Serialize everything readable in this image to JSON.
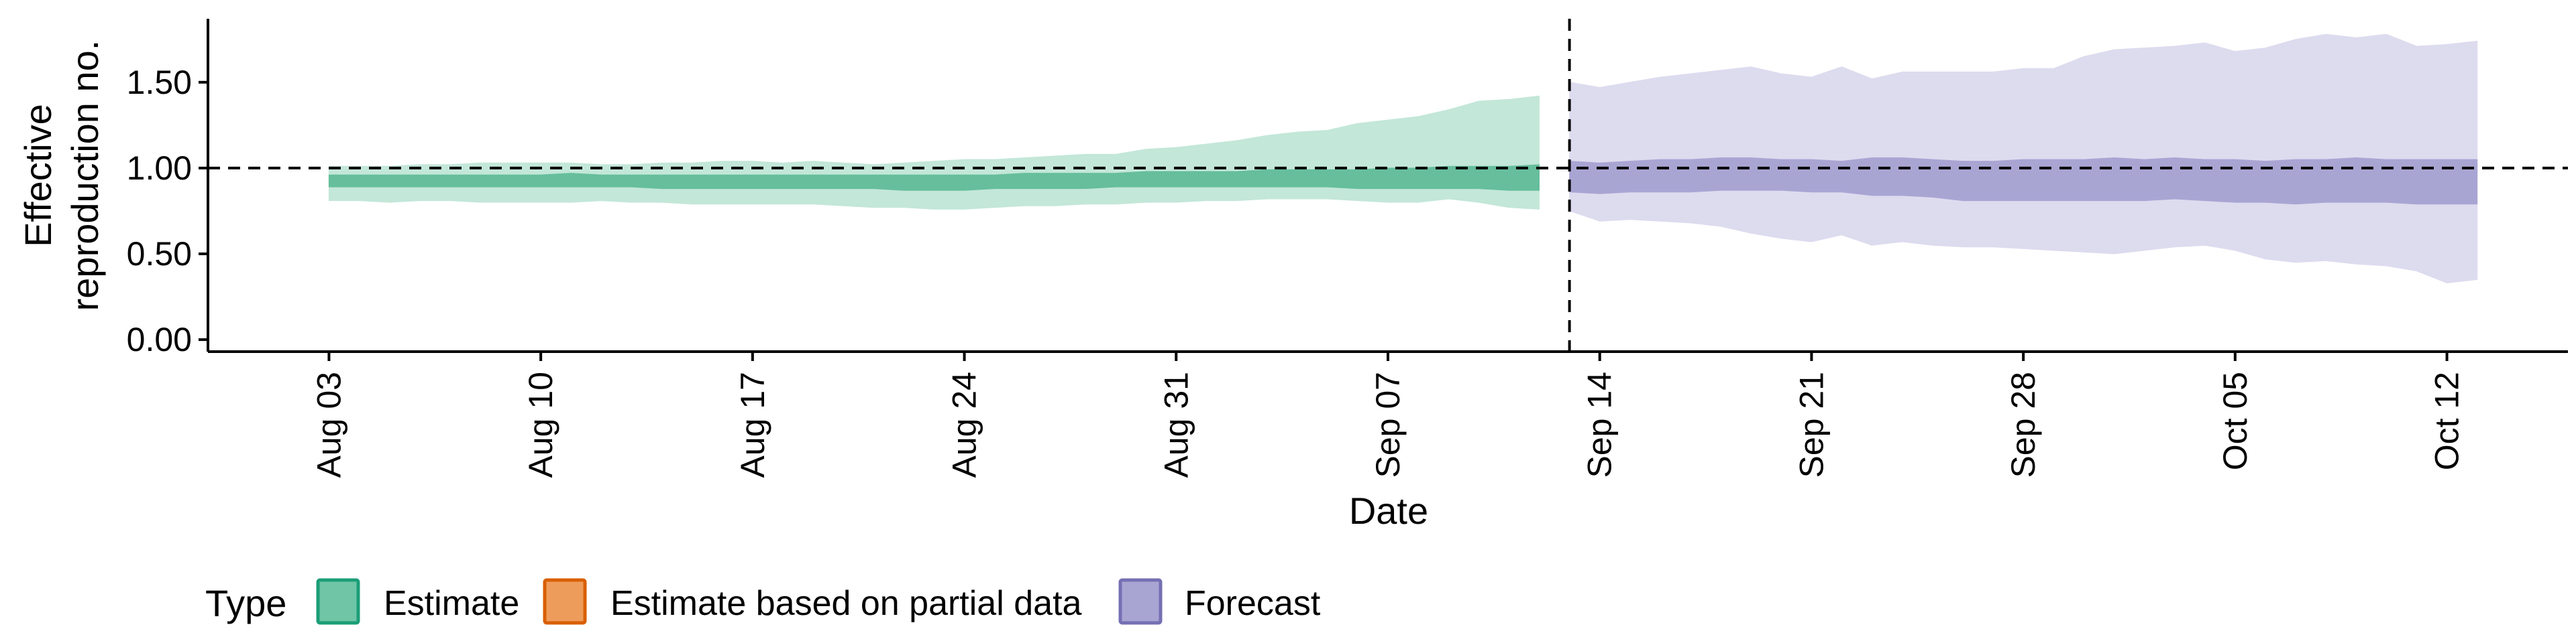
{
  "chart_data": {
    "type": "area",
    "title": "",
    "xlabel": "Date",
    "ylabel_lines": [
      "Effective",
      "reproduction no."
    ],
    "x_tick_labels": [
      "Aug 03",
      "Aug 10",
      "Aug 17",
      "Aug 24",
      "Aug 31",
      "Sep 07",
      "Sep 14",
      "Sep 21",
      "Sep 28",
      "Oct 05",
      "Oct 12"
    ],
    "x_tick_dates": [
      "2020-08-03",
      "2020-08-10",
      "2020-08-17",
      "2020-08-24",
      "2020-08-31",
      "2020-09-07",
      "2020-09-14",
      "2020-09-21",
      "2020-09-28",
      "2020-10-05",
      "2020-10-12"
    ],
    "xlim": [
      "2020-07-30",
      "2020-10-16"
    ],
    "y_ticks": [
      0.0,
      0.5,
      1.0,
      1.5
    ],
    "y_tick_labels": [
      "0.00",
      "0.50",
      "1.00",
      "1.50"
    ],
    "ylim": [
      -0.07,
      1.87
    ],
    "reference_hline": 1.0,
    "reference_vline_date": "2020-09-13",
    "grid": false,
    "legend_position": "bottom",
    "legend_title": "Type",
    "legend": [
      {
        "label": "Estimate",
        "fill": "#6FC5A5",
        "stroke": "#1B9E77"
      },
      {
        "label": "Estimate based on partial data",
        "fill": "#EE9C5C",
        "stroke": "#D95F02"
      },
      {
        "label": "Forecast",
        "fill": "#A9A5D3",
        "stroke": "#7570B3"
      }
    ],
    "series": [
      {
        "name": "Estimate",
        "color": "#1B9E77",
        "outer_fill": "#C3E7D9",
        "inner_fill": "#66BE9C",
        "dates": [
          "2020-08-03",
          "2020-08-04",
          "2020-08-05",
          "2020-08-06",
          "2020-08-07",
          "2020-08-08",
          "2020-08-09",
          "2020-08-10",
          "2020-08-11",
          "2020-08-12",
          "2020-08-13",
          "2020-08-14",
          "2020-08-15",
          "2020-08-16",
          "2020-08-17",
          "2020-08-18",
          "2020-08-19",
          "2020-08-20",
          "2020-08-21",
          "2020-08-22",
          "2020-08-23",
          "2020-08-24",
          "2020-08-25",
          "2020-08-26",
          "2020-08-27",
          "2020-08-28",
          "2020-08-29",
          "2020-08-30",
          "2020-08-31",
          "2020-09-01",
          "2020-09-02",
          "2020-09-03",
          "2020-09-04",
          "2020-09-05",
          "2020-09-06",
          "2020-09-07",
          "2020-09-08",
          "2020-09-09",
          "2020-09-10",
          "2020-09-11",
          "2020-09-12"
        ],
        "lower_90": [
          0.81,
          0.81,
          0.8,
          0.81,
          0.81,
          0.8,
          0.8,
          0.8,
          0.8,
          0.81,
          0.8,
          0.8,
          0.79,
          0.79,
          0.79,
          0.79,
          0.79,
          0.78,
          0.77,
          0.77,
          0.76,
          0.76,
          0.77,
          0.78,
          0.78,
          0.79,
          0.79,
          0.8,
          0.8,
          0.81,
          0.81,
          0.82,
          0.82,
          0.82,
          0.81,
          0.8,
          0.8,
          0.82,
          0.8,
          0.77,
          0.76
        ],
        "upper_90": [
          1.01,
          1.01,
          1.01,
          1.02,
          1.02,
          1.03,
          1.03,
          1.03,
          1.03,
          1.02,
          1.02,
          1.03,
          1.03,
          1.04,
          1.04,
          1.03,
          1.04,
          1.03,
          1.02,
          1.03,
          1.04,
          1.05,
          1.05,
          1.06,
          1.07,
          1.08,
          1.08,
          1.11,
          1.12,
          1.14,
          1.16,
          1.19,
          1.21,
          1.22,
          1.26,
          1.28,
          1.3,
          1.34,
          1.39,
          1.4,
          1.42
        ],
        "lower_50": [
          0.89,
          0.89,
          0.89,
          0.89,
          0.89,
          0.89,
          0.89,
          0.89,
          0.89,
          0.89,
          0.89,
          0.88,
          0.88,
          0.88,
          0.88,
          0.88,
          0.88,
          0.88,
          0.88,
          0.87,
          0.87,
          0.87,
          0.88,
          0.88,
          0.88,
          0.88,
          0.89,
          0.89,
          0.89,
          0.89,
          0.89,
          0.89,
          0.89,
          0.89,
          0.88,
          0.88,
          0.88,
          0.88,
          0.88,
          0.87,
          0.87
        ],
        "upper_50": [
          0.96,
          0.96,
          0.96,
          0.96,
          0.96,
          0.96,
          0.96,
          0.96,
          0.97,
          0.96,
          0.96,
          0.96,
          0.96,
          0.96,
          0.96,
          0.96,
          0.96,
          0.96,
          0.96,
          0.96,
          0.96,
          0.96,
          0.96,
          0.97,
          0.97,
          0.97,
          0.97,
          0.98,
          0.98,
          0.98,
          0.98,
          0.99,
          0.99,
          0.99,
          0.99,
          1.0,
          1.0,
          1.01,
          1.01,
          1.01,
          1.02
        ]
      },
      {
        "name": "Forecast",
        "color": "#7570B3",
        "outer_fill": "#DDDBEE",
        "inner_fill": "#A9A5D3",
        "dates": [
          "2020-09-13",
          "2020-09-14",
          "2020-09-15",
          "2020-09-16",
          "2020-09-17",
          "2020-09-18",
          "2020-09-19",
          "2020-09-20",
          "2020-09-21",
          "2020-09-22",
          "2020-09-23",
          "2020-09-24",
          "2020-09-25",
          "2020-09-26",
          "2020-09-27",
          "2020-09-28",
          "2020-09-29",
          "2020-09-30",
          "2020-10-01",
          "2020-10-02",
          "2020-10-03",
          "2020-10-04",
          "2020-10-05",
          "2020-10-06",
          "2020-10-07",
          "2020-10-08",
          "2020-10-09",
          "2020-10-10",
          "2020-10-11",
          "2020-10-12",
          "2020-10-13"
        ],
        "lower_90": [
          0.75,
          0.69,
          0.7,
          0.69,
          0.68,
          0.66,
          0.62,
          0.59,
          0.57,
          0.61,
          0.55,
          0.57,
          0.55,
          0.54,
          0.54,
          0.53,
          0.52,
          0.51,
          0.5,
          0.52,
          0.54,
          0.55,
          0.52,
          0.47,
          0.45,
          0.46,
          0.44,
          0.43,
          0.4,
          0.33,
          0.35
        ],
        "upper_90": [
          1.5,
          1.47,
          1.5,
          1.53,
          1.55,
          1.57,
          1.59,
          1.55,
          1.53,
          1.59,
          1.52,
          1.56,
          1.56,
          1.56,
          1.56,
          1.58,
          1.58,
          1.65,
          1.69,
          1.7,
          1.71,
          1.73,
          1.68,
          1.7,
          1.75,
          1.78,
          1.76,
          1.78,
          1.71,
          1.72,
          1.74
        ],
        "lower_50": [
          0.86,
          0.85,
          0.86,
          0.86,
          0.86,
          0.87,
          0.87,
          0.87,
          0.86,
          0.86,
          0.84,
          0.84,
          0.83,
          0.81,
          0.81,
          0.81,
          0.81,
          0.81,
          0.81,
          0.81,
          0.82,
          0.81,
          0.8,
          0.8,
          0.79,
          0.8,
          0.8,
          0.8,
          0.79,
          0.79,
          0.79
        ],
        "upper_50": [
          1.04,
          1.03,
          1.04,
          1.05,
          1.05,
          1.06,
          1.06,
          1.05,
          1.05,
          1.04,
          1.06,
          1.06,
          1.05,
          1.04,
          1.04,
          1.05,
          1.05,
          1.05,
          1.06,
          1.05,
          1.06,
          1.05,
          1.05,
          1.04,
          1.05,
          1.05,
          1.06,
          1.05,
          1.05,
          1.05,
          1.05
        ]
      }
    ]
  }
}
